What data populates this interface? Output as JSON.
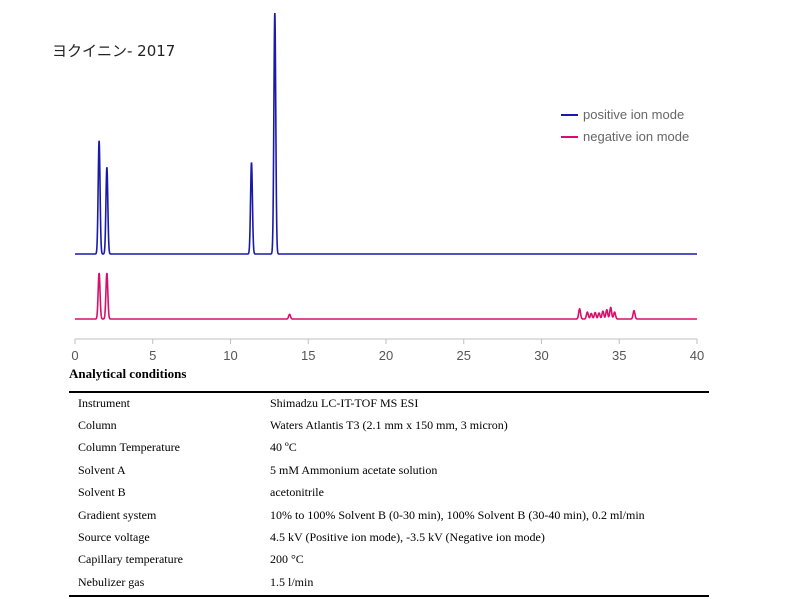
{
  "chart_data": {
    "type": "line",
    "title": "ヨクイニン- 2017",
    "xlabel": "",
    "ylabel": "",
    "xlim": [
      0,
      40
    ],
    "xticks": [
      0,
      5,
      10,
      15,
      20,
      25,
      30,
      35,
      40
    ],
    "grid": false,
    "legend_position": "top-right",
    "series": [
      {
        "name": "positive ion mode",
        "color": "#1a1aaa",
        "peaks": [
          {
            "rt": 1.55,
            "height": 0.47
          },
          {
            "rt": 2.05,
            "height": 0.36
          },
          {
            "rt": 11.35,
            "height": 0.38
          },
          {
            "rt": 12.85,
            "height": 1.0
          }
        ]
      },
      {
        "name": "negative ion mode",
        "color": "#d6106a",
        "peaks": [
          {
            "rt": 1.55,
            "height": 1.0
          },
          {
            "rt": 2.05,
            "height": 1.0
          },
          {
            "rt": 13.8,
            "height": 0.1
          },
          {
            "rt": 32.45,
            "height": 0.22
          },
          {
            "rt": 32.95,
            "height": 0.15
          },
          {
            "rt": 33.2,
            "height": 0.12
          },
          {
            "rt": 33.45,
            "height": 0.14
          },
          {
            "rt": 33.7,
            "height": 0.13
          },
          {
            "rt": 33.95,
            "height": 0.17
          },
          {
            "rt": 34.2,
            "height": 0.2
          },
          {
            "rt": 34.45,
            "height": 0.25
          },
          {
            "rt": 34.7,
            "height": 0.15
          },
          {
            "rt": 35.95,
            "height": 0.18
          }
        ]
      }
    ]
  },
  "conditions": {
    "heading": "Analytical conditions",
    "rows": [
      {
        "label": "Instrument",
        "value": "Shimadzu LC-IT-TOF MS ESI"
      },
      {
        "label": "Column",
        "value": "Waters Atlantis T3 (2.1 mm x 150 mm, 3 micron)"
      },
      {
        "label": "Column Temperature",
        "value": "40 ºC"
      },
      {
        "label": "Solvent A",
        "value": "5 mM Ammonium acetate solution"
      },
      {
        "label": "Solvent B",
        "value": "acetonitrile"
      },
      {
        "label": "Gradient system",
        "value": "10% to 100% Solvent B (0-30 min), 100% Solvent B (30-40 min), 0.2 ml/min"
      },
      {
        "label": "Source voltage",
        "value": "4.5 kV (Positive ion mode), -3.5 kV (Negative ion mode)"
      },
      {
        "label": "Capillary temperature",
        "value": "200 °C"
      },
      {
        "label": "Nebulizer gas",
        "value": "1.5 l/min"
      }
    ]
  }
}
